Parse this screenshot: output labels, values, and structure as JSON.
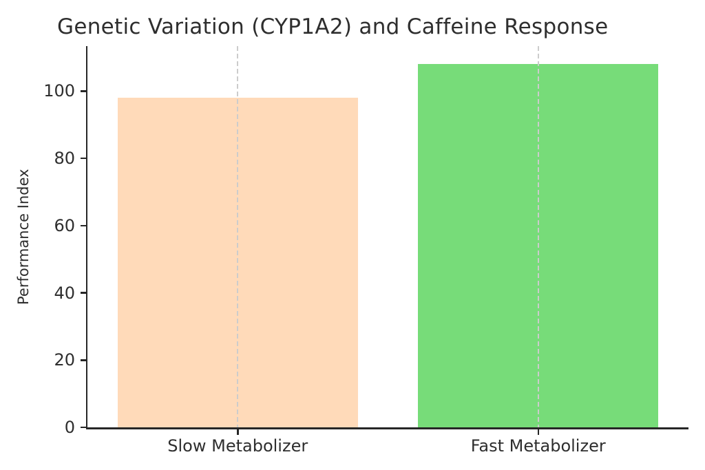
{
  "chart_data": {
    "type": "bar",
    "title": "Genetic Variation (CYP1A2) and Caffeine Response",
    "xlabel": "",
    "ylabel": "Performance Index",
    "categories": [
      "Slow Metabolizer",
      "Fast Metabolizer"
    ],
    "values": [
      98,
      108
    ],
    "bar_colors": [
      "#FFDAB9",
      "#77DC79"
    ],
    "bar_width_fraction": 0.8,
    "ylim": [
      0,
      113.4
    ],
    "yticks": [
      0,
      20,
      40,
      60,
      80,
      100
    ],
    "grid": {
      "axis": "x",
      "style": "dashed",
      "color": "#cccccc",
      "above_bars": true
    },
    "legend_position": "none",
    "background_color": "#ffffff",
    "spine_color": "#262626",
    "text_color": "#2e2e2e",
    "visible_spines": [
      "left",
      "bottom"
    ]
  }
}
